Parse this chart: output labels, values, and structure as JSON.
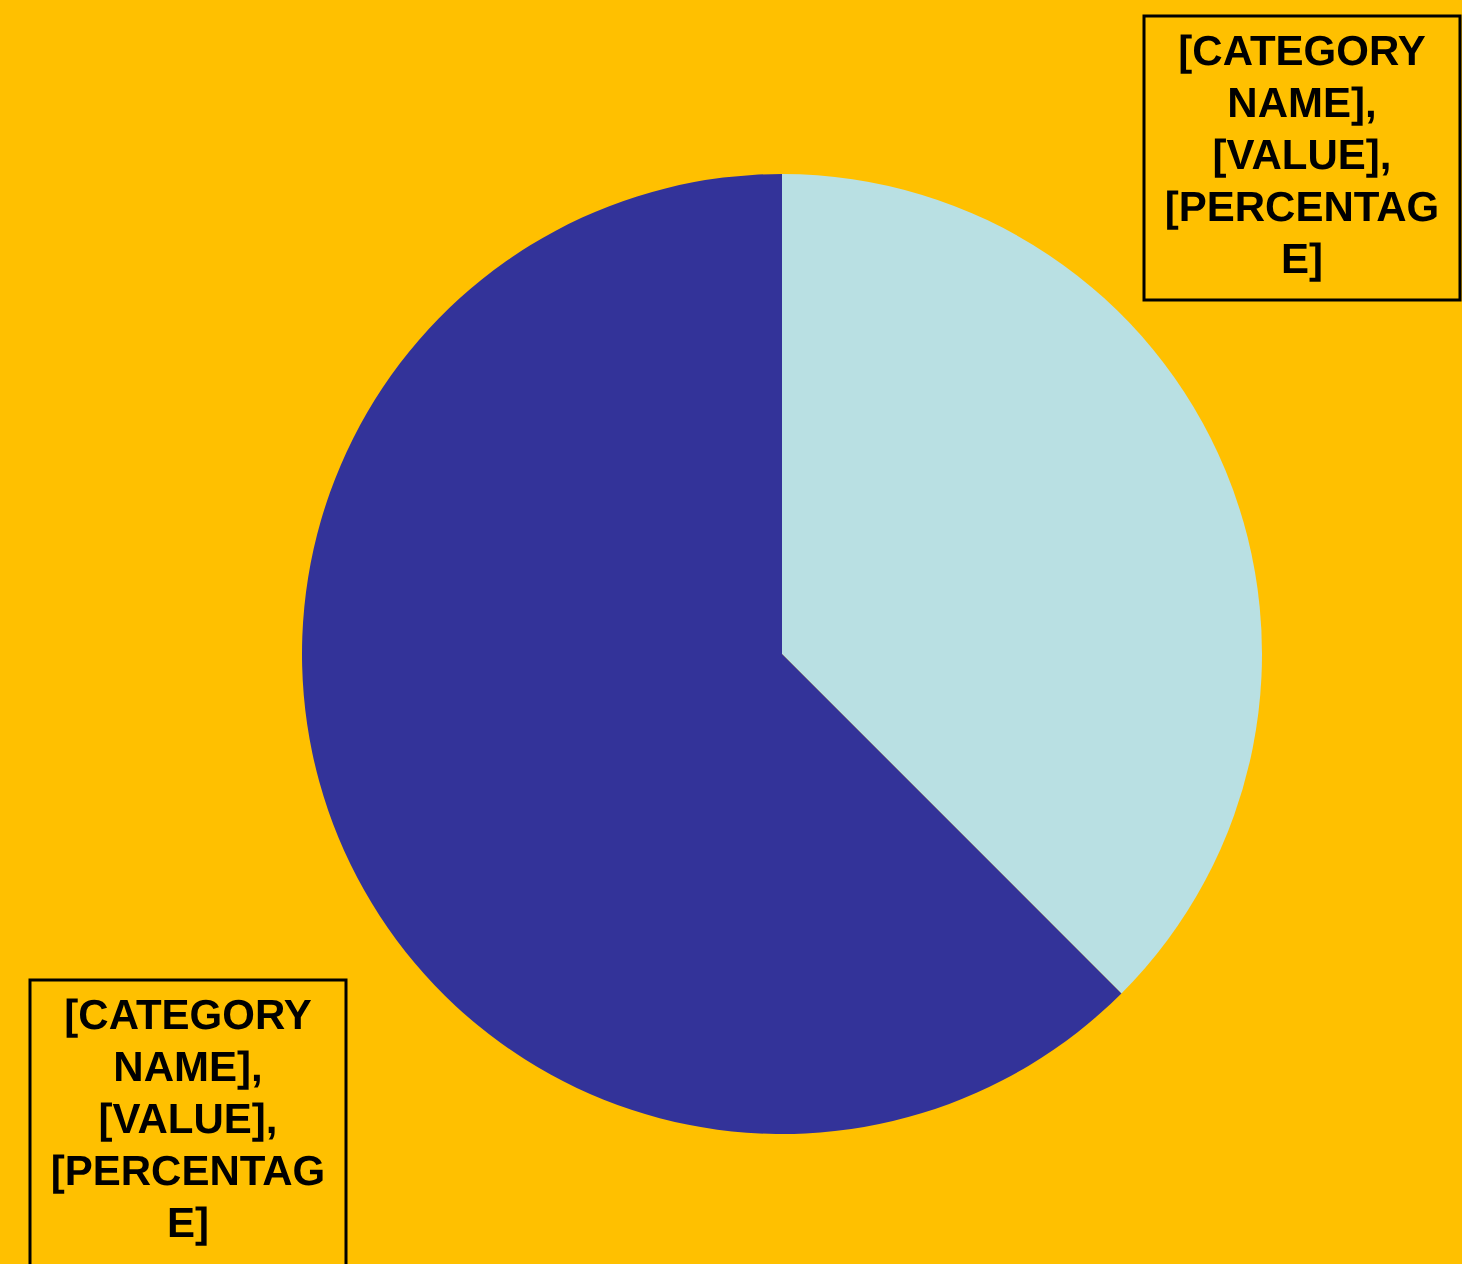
{
  "chart_data": {
    "type": "pie",
    "categories": [
      null,
      null
    ],
    "values": [
      37.5,
      62.5
    ],
    "colors": [
      "#b9e0e3",
      "#333399"
    ],
    "value_labels": [
      "[CATEGORY NAME], [VALUE], [PERCENTAGE]",
      "[CATEGORY NAME], [VALUE], [PERCENTAGE]"
    ],
    "legend": false
  }
}
